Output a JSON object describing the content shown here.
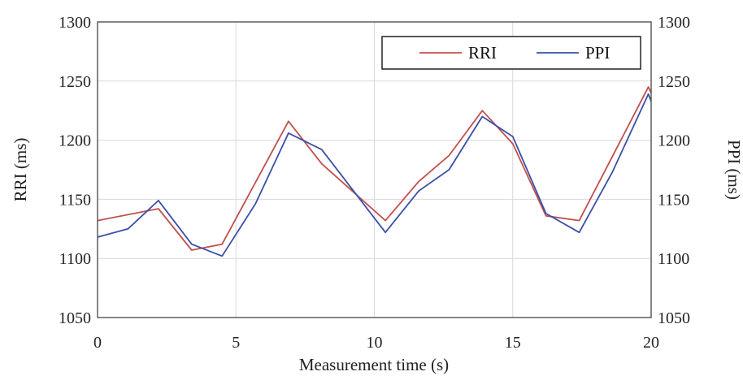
{
  "chart_data": {
    "type": "line",
    "xlabel": "Measurement time (s)",
    "ylabel": "RRI (ms)",
    "y2label": "PPI (ms)",
    "xlim": [
      0,
      20
    ],
    "ylim": [
      1050,
      1300
    ],
    "y2lim": [
      1050,
      1300
    ],
    "x_ticks": [
      "0",
      "5",
      "10",
      "15",
      "20"
    ],
    "y_ticks": [
      "1050",
      "1100",
      "1150",
      "1200",
      "1250",
      "1300"
    ],
    "y2_ticks": [
      "1050",
      "1100",
      "1150",
      "1200",
      "1250",
      "1300"
    ],
    "grid": true,
    "legend_position": "top-right",
    "series": [
      {
        "name": "RRI",
        "color": "#c0504d",
        "x": [
          0,
          2.2,
          3.4,
          4.5,
          6.9,
          8.1,
          10.4,
          11.6,
          12.7,
          13.9,
          15.0,
          16.2,
          17.4,
          19.9,
          20
        ],
        "y": [
          1132,
          1142,
          1107,
          1112,
          1216,
          1180,
          1132,
          1165,
          1187,
          1225,
          1197,
          1136,
          1132,
          1245,
          1240
        ]
      },
      {
        "name": "PPI",
        "color": "#3a4fa8",
        "x": [
          0,
          1.1,
          2.2,
          3.4,
          4.5,
          5.7,
          6.9,
          8.1,
          10.4,
          11.6,
          12.7,
          13.9,
          15.0,
          16.2,
          17.4,
          18.6,
          19.9,
          20
        ],
        "y": [
          1118,
          1125,
          1149,
          1112,
          1102,
          1146,
          1206,
          1192,
          1122,
          1157,
          1175,
          1220,
          1203,
          1138,
          1122,
          1173,
          1239,
          1233
        ]
      }
    ]
  }
}
